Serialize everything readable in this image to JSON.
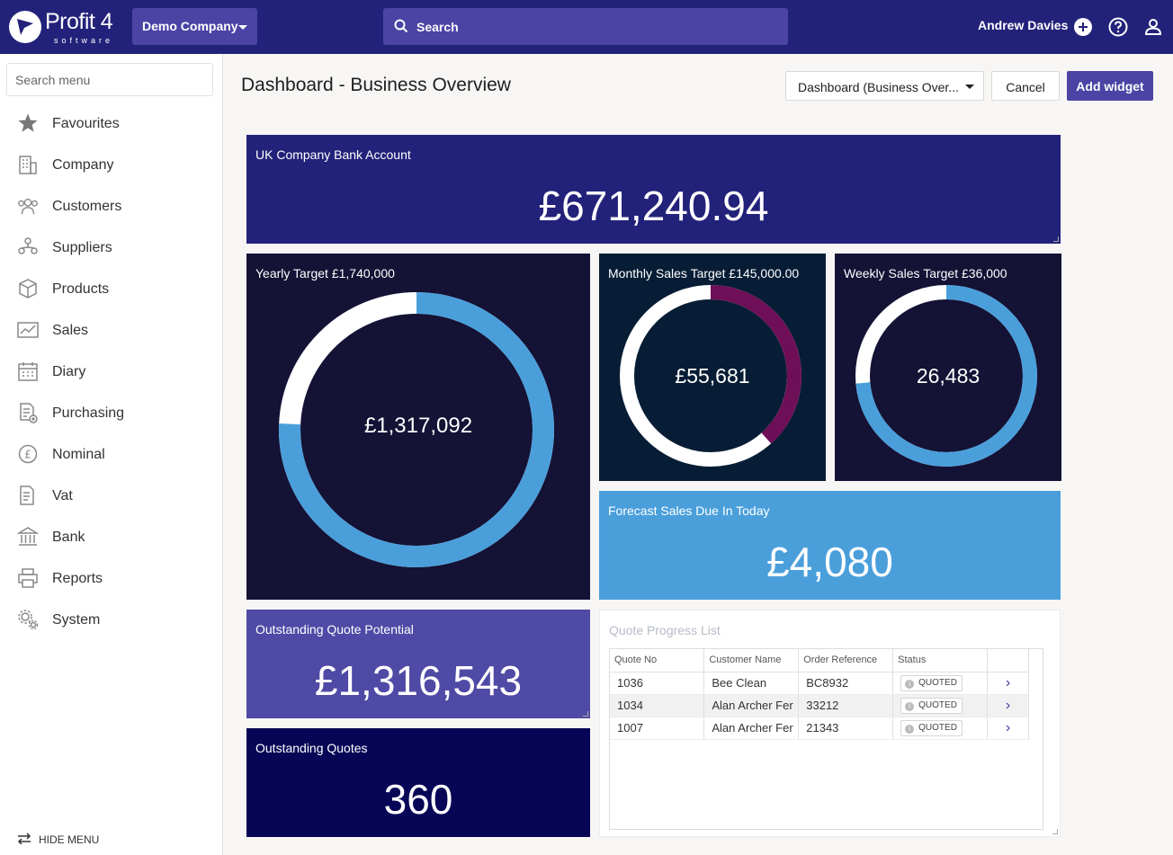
{
  "header": {
    "logo_text": "Profit 4",
    "logo_sub": "software",
    "company": "Demo Company",
    "search_label": "Search",
    "user_name": "Andrew Davies"
  },
  "sidebar": {
    "search_placeholder": "Search menu",
    "items": [
      {
        "label": "Favourites",
        "icon": "star-icon"
      },
      {
        "label": "Company",
        "icon": "building-icon"
      },
      {
        "label": "Customers",
        "icon": "customers-icon"
      },
      {
        "label": "Suppliers",
        "icon": "suppliers-icon"
      },
      {
        "label": "Products",
        "icon": "box-icon"
      },
      {
        "label": "Sales",
        "icon": "sales-chart-icon"
      },
      {
        "label": "Diary",
        "icon": "calendar-icon"
      },
      {
        "label": "Purchasing",
        "icon": "purchasing-icon"
      },
      {
        "label": "Nominal",
        "icon": "pound-icon"
      },
      {
        "label": "Vat",
        "icon": "vat-document-icon"
      },
      {
        "label": "Bank",
        "icon": "bank-icon"
      },
      {
        "label": "Reports",
        "icon": "printer-icon"
      },
      {
        "label": "System",
        "icon": "gears-icon"
      }
    ],
    "hide_menu": "HIDE MENU"
  },
  "toolbar": {
    "page_title": "Dashboard - Business Overview",
    "dashboard_select": "Dashboard (Business Over...",
    "cancel_label": "Cancel",
    "add_widget_label": "Add widget"
  },
  "widgets": {
    "bank": {
      "title": "UK Company Bank Account",
      "value": "£671,240.94",
      "color": "#23227a"
    },
    "yearly": {
      "title": "Yearly Target £1,740,000",
      "value": "£1,317,092",
      "progress": 0.757,
      "color": "#141235"
    },
    "monthly": {
      "title": "Monthly Sales Target £145,000.00",
      "value": "£55,681",
      "progress": 0.384,
      "color": "#071d35"
    },
    "weekly": {
      "title": "Weekly Sales Target £36,000",
      "value": "26,483",
      "progress": 0.736,
      "color": "#141235"
    },
    "forecast": {
      "title": "Forecast Sales Due In Today",
      "value": "£4,080",
      "color": "#4a9fdb"
    },
    "quote_potential": {
      "title": "Outstanding Quote Potential",
      "value": "£1,316,543",
      "color": "#4f4aa5"
    },
    "quotes": {
      "title": "Outstanding Quotes",
      "value": "360",
      "color": "#070555"
    }
  },
  "quote_list": {
    "title": "Quote Progress List",
    "columns": [
      "Quote No",
      "Customer Name",
      "Order Reference",
      "Status"
    ],
    "rows": [
      {
        "quote_no": "1036",
        "customer": "Bee Clean",
        "order_ref": "BC8932",
        "status": "QUOTED"
      },
      {
        "quote_no": "1034",
        "customer": "Alan Archer Fer",
        "order_ref": "33212",
        "status": "QUOTED"
      },
      {
        "quote_no": "1007",
        "customer": "Alan Archer Fer",
        "order_ref": "21343",
        "status": "QUOTED"
      }
    ]
  }
}
